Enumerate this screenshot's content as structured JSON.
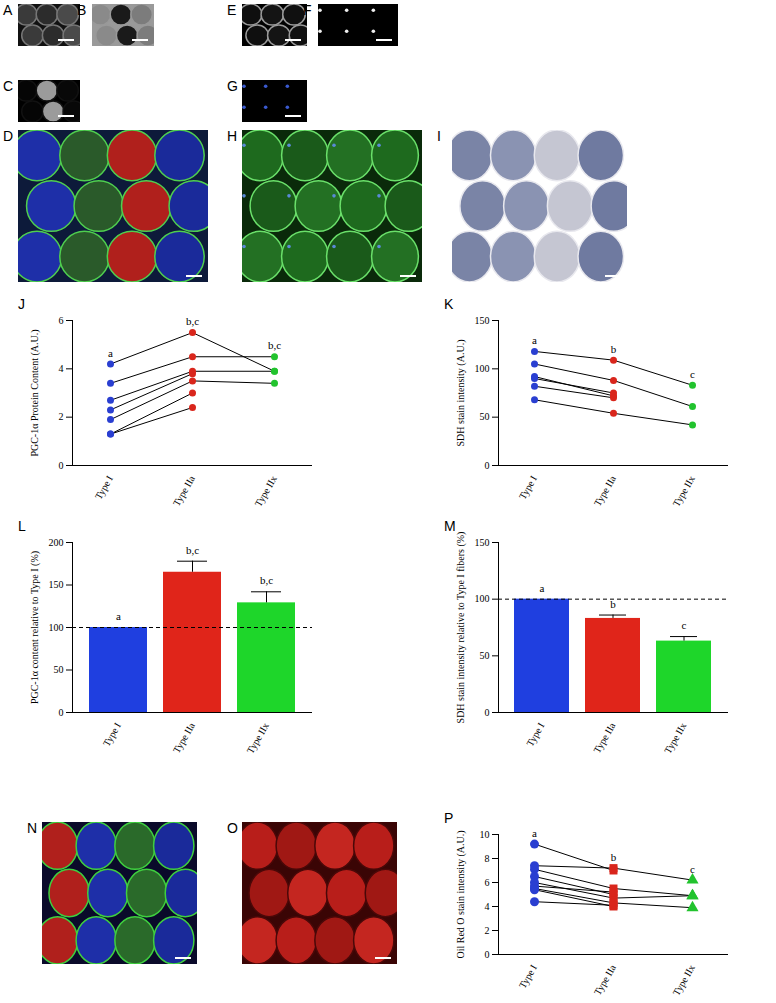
{
  "image_panels": [
    {
      "label": "A"
    },
    {
      "label": "B"
    },
    {
      "label": "C"
    },
    {
      "label": "D"
    },
    {
      "label": "E"
    },
    {
      "label": "F"
    },
    {
      "label": "G"
    },
    {
      "label": "H"
    },
    {
      "label": "I"
    },
    {
      "label": "N"
    },
    {
      "label": "O"
    }
  ],
  "chart_data": [
    {
      "title": "J",
      "type": "line",
      "y_label": "PGC-1α Protein Content (A.U.)",
      "categories": [
        "Type I",
        "Type IIa",
        "Type IIx"
      ],
      "colors": [
        "#2a3fd1",
        "#d9261c",
        "#22c32e"
      ],
      "ylim": [
        0,
        6
      ],
      "yticks": [
        0,
        2,
        4,
        6
      ],
      "annotations": [
        "a",
        "b,c",
        "b,c"
      ],
      "series": [
        {
          "values": [
            4.2,
            5.5,
            3.9
          ]
        },
        {
          "values": [
            3.4,
            4.5,
            4.5
          ]
        },
        {
          "values": [
            2.7,
            3.9,
            3.9
          ]
        },
        {
          "values": [
            2.3,
            3.8,
            null
          ]
        },
        {
          "values": [
            1.9,
            3.5,
            3.4
          ]
        },
        {
          "values": [
            1.3,
            3.0,
            null
          ]
        },
        {
          "values": [
            1.3,
            2.4,
            null
          ]
        }
      ]
    },
    {
      "title": "K",
      "type": "line",
      "y_label": "SDH stain intensity (A.U.)",
      "categories": [
        "Type I",
        "Type IIa",
        "Type IIx"
      ],
      "colors": [
        "#2a3fd1",
        "#d9261c",
        "#22c32e"
      ],
      "ylim": [
        0,
        150
      ],
      "yticks": [
        0,
        50,
        100,
        150
      ],
      "annotations": [
        "a",
        "b",
        "c"
      ],
      "series": [
        {
          "values": [
            118,
            109,
            83
          ]
        },
        {
          "values": [
            105,
            88,
            61
          ]
        },
        {
          "values": [
            92,
            72,
            null
          ]
        },
        {
          "values": [
            90,
            75,
            null
          ]
        },
        {
          "values": [
            82,
            70,
            null
          ]
        },
        {
          "values": [
            68,
            54,
            42
          ]
        }
      ]
    },
    {
      "title": "L",
      "type": "bar",
      "y_label": "PGC-1α content relative to Type I (%)",
      "categories": [
        "Type I",
        "Type IIa",
        "Type IIx"
      ],
      "colors": [
        "#1f3fe0",
        "#e0251a",
        "#1ed62a"
      ],
      "values": [
        100,
        165,
        129
      ],
      "errors": [
        0,
        13,
        13
      ],
      "reference_line": 100,
      "ylim": [
        0,
        200
      ],
      "yticks": [
        0,
        50,
        100,
        150,
        200
      ],
      "annotations": [
        "a",
        "b,c",
        "b,c"
      ]
    },
    {
      "title": "M",
      "type": "bar",
      "y_label": "SDH stain intensity relative to Type I fibers (%)",
      "categories": [
        "Type I",
        "Type IIa",
        "Type IIx"
      ],
      "colors": [
        "#1f3fe0",
        "#e0251a",
        "#1ed62a"
      ],
      "values": [
        100,
        83,
        63
      ],
      "errors": [
        0,
        3,
        4
      ],
      "reference_line": 100,
      "ylim": [
        0,
        150
      ],
      "yticks": [
        0,
        50,
        100,
        150
      ],
      "annotations": [
        "a",
        "b",
        "c"
      ]
    },
    {
      "title": "P",
      "type": "line",
      "y_label": "Oil Red O stain intensity (A.U.)",
      "categories": [
        "Type I",
        "Type IIa",
        "Type IIx"
      ],
      "colors": [
        "#2a3fd1",
        "#d9261c",
        "#22c32e"
      ],
      "marker": [
        "circle",
        "square",
        "triangle"
      ],
      "ylim": [
        0,
        10
      ],
      "yticks": [
        0,
        2,
        4,
        6,
        8,
        10
      ],
      "annotations": [
        "a",
        "b",
        "c"
      ],
      "series": [
        {
          "values": [
            9.2,
            7.0,
            null
          ]
        },
        {
          "values": [
            7.4,
            7.2,
            6.2
          ]
        },
        {
          "values": [
            7.1,
            5.5,
            4.9
          ]
        },
        {
          "values": [
            6.5,
            5.0,
            null
          ]
        },
        {
          "values": [
            6.0,
            4.7,
            4.9
          ]
        },
        {
          "values": [
            5.7,
            5.2,
            null
          ]
        },
        {
          "values": [
            5.5,
            4.3,
            3.9
          ]
        },
        {
          "values": [
            5.4,
            4.0,
            null
          ]
        },
        {
          "values": [
            4.4,
            4.1,
            null
          ]
        }
      ]
    }
  ]
}
